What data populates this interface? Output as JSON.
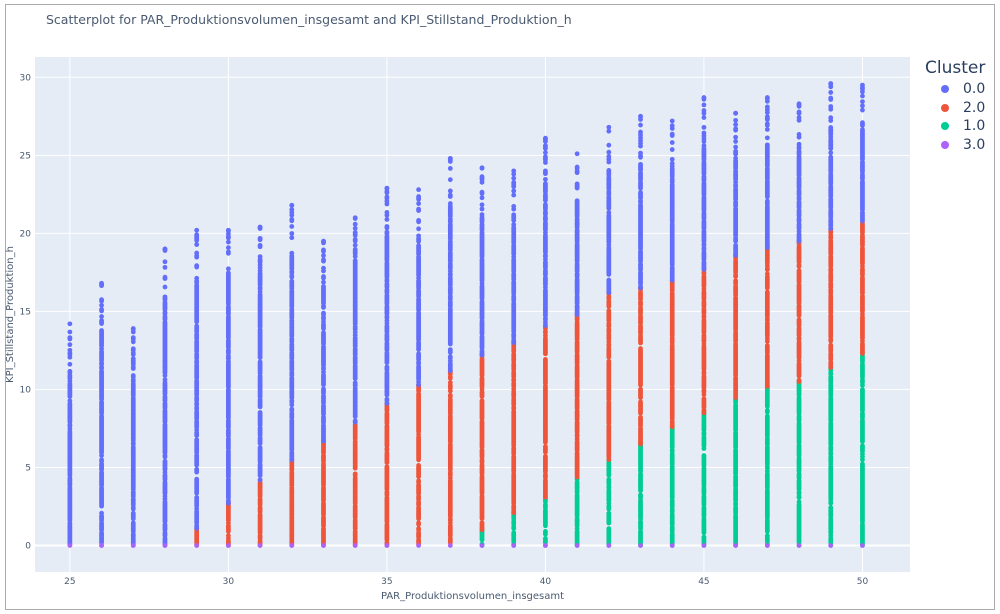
{
  "chart_data": {
    "type": "scatter",
    "title": "Scatterplot for PAR_Produktionsvolumen_insgesamt and KPI_Stillstand_Produktion_h",
    "xlabel": "PAR_Produktionsvolumen_insgesamt",
    "ylabel": "KPI_Stillstand_Produktion_h",
    "xlim": [
      23.9,
      51.5
    ],
    "ylim": [
      -1.7,
      31.3
    ],
    "xticks": [
      25,
      30,
      35,
      40,
      45,
      50
    ],
    "yticks": [
      0,
      5,
      10,
      15,
      20,
      25,
      30
    ],
    "grid": true,
    "legend": {
      "title": "Cluster",
      "placement": "right"
    },
    "series": [
      {
        "name": "0.0",
        "color": "#636efa"
      },
      {
        "name": "2.0",
        "color": "#ef553b"
      },
      {
        "name": "1.0",
        "color": "#00cc96"
      },
      {
        "name": "3.0",
        "color": "#ab63fa"
      }
    ],
    "columns": [
      {
        "x": 25,
        "blue": [
          0,
          14.2
        ]
      },
      {
        "x": 26,
        "blue": [
          0,
          16.8
        ]
      },
      {
        "x": 27,
        "blue": [
          0,
          13.9
        ]
      },
      {
        "x": 28,
        "blue": [
          0,
          19.0
        ]
      },
      {
        "x": 29,
        "red": [
          0,
          1.1
        ],
        "blue": [
          1.1,
          20.2
        ]
      },
      {
        "x": 30,
        "red": [
          0,
          2.7
        ],
        "blue": [
          2.7,
          20.2
        ]
      },
      {
        "x": 31,
        "red": [
          0,
          4.2
        ],
        "blue": [
          4.2,
          20.4
        ]
      },
      {
        "x": 32,
        "red": [
          0,
          5.5
        ],
        "blue": [
          5.5,
          21.8
        ]
      },
      {
        "x": 33,
        "red": [
          0,
          6.7
        ],
        "blue": [
          6.7,
          19.5
        ]
      },
      {
        "x": 34,
        "red": [
          0,
          7.9
        ],
        "blue": [
          7.9,
          21.0
        ]
      },
      {
        "x": 35,
        "red": [
          0,
          9.1
        ],
        "blue": [
          9.1,
          22.9
        ]
      },
      {
        "x": 36,
        "red": [
          0,
          10.3
        ],
        "blue": [
          10.3,
          22.8
        ]
      },
      {
        "x": 37,
        "red": [
          0,
          11.2
        ],
        "blue": [
          11.2,
          24.8
        ]
      },
      {
        "x": 38,
        "green": [
          0,
          1.0
        ],
        "red": [
          1.0,
          12.2
        ],
        "blue": [
          12.2,
          24.2
        ]
      },
      {
        "x": 39,
        "green": [
          0,
          2.1
        ],
        "red": [
          2.1,
          13.0
        ],
        "blue": [
          13.0,
          24.0
        ]
      },
      {
        "x": 40,
        "green": [
          0,
          3.1
        ],
        "red": [
          3.1,
          14.1
        ],
        "blue": [
          14.1,
          26.1
        ]
      },
      {
        "x": 41,
        "green": [
          0,
          4.3
        ],
        "red": [
          4.3,
          14.8
        ],
        "blue": [
          14.8,
          25.1
        ]
      },
      {
        "x": 42,
        "green": [
          0,
          5.5
        ],
        "red": [
          5.5,
          16.2
        ],
        "blue": [
          16.2,
          26.8
        ]
      },
      {
        "x": 43,
        "green": [
          0,
          6.5
        ],
        "red": [
          6.5,
          16.5
        ],
        "blue": [
          16.5,
          27.5
        ]
      },
      {
        "x": 44,
        "green": [
          0,
          7.6
        ],
        "red": [
          7.6,
          17.0
        ],
        "blue": [
          17.0,
          27.2
        ]
      },
      {
        "x": 45,
        "green": [
          0,
          8.5
        ],
        "red": [
          8.5,
          17.7
        ],
        "blue": [
          17.7,
          28.7
        ]
      },
      {
        "x": 46,
        "green": [
          0,
          9.4
        ],
        "red": [
          9.4,
          18.6
        ],
        "blue": [
          18.6,
          27.7
        ]
      },
      {
        "x": 47,
        "green": [
          0,
          10.2
        ],
        "red": [
          10.2,
          19.1
        ],
        "blue": [
          19.1,
          28.7
        ]
      },
      {
        "x": 48,
        "green": [
          0,
          10.5
        ],
        "red": [
          10.5,
          19.5
        ],
        "blue": [
          19.5,
          28.3
        ]
      },
      {
        "x": 49,
        "green": [
          0,
          11.4
        ],
        "red": [
          11.4,
          20.3
        ],
        "blue": [
          20.3,
          29.6
        ]
      },
      {
        "x": 50,
        "green": [
          0,
          12.3
        ],
        "red": [
          12.3,
          20.7
        ],
        "blue": [
          20.7,
          29.5
        ]
      }
    ],
    "purple_value": 0
  }
}
